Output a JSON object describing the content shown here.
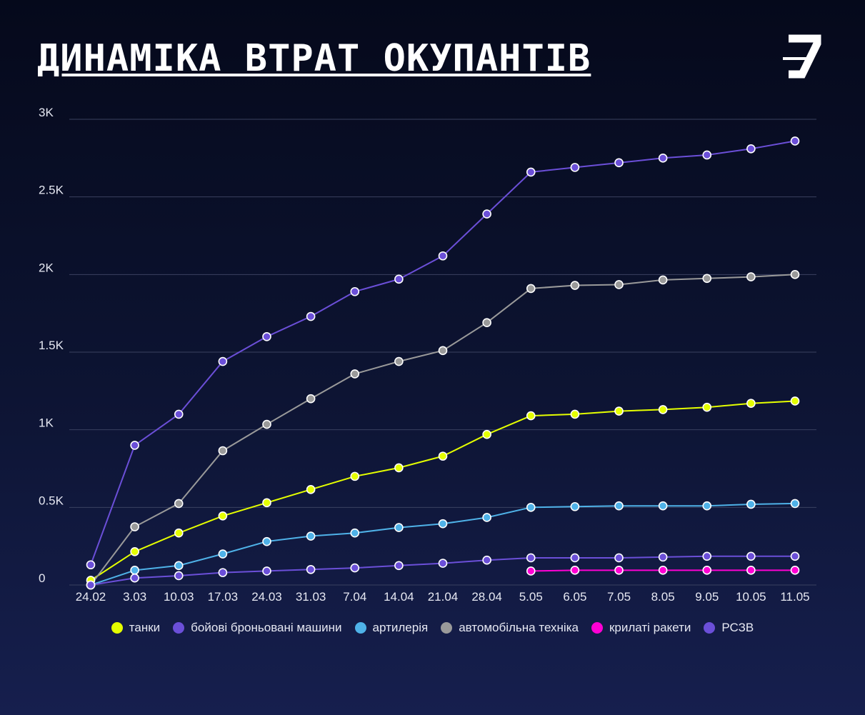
{
  "header": {
    "title": "ДИНАМІКА ВТРАТ ОКУПАНТІВ"
  },
  "logo": {
    "icon": "z-logo-icon"
  },
  "colors": {
    "background": "#0b1029",
    "grid": "#3a4160",
    "text": "#e6e8f2",
    "marker_stroke": "#ffffff"
  },
  "chart_data": {
    "type": "line",
    "title": "ДИНАМІКА ВТРАТ ОКУПАНТІВ",
    "xlabel": "",
    "ylabel": "",
    "categories": [
      "24.02",
      "3.03",
      "10.03",
      "17.03",
      "24.03",
      "31.03",
      "7.04",
      "14.04",
      "21.04",
      "28.04",
      "5.05",
      "6.05",
      "7.05",
      "8.05",
      "9.05",
      "10.05",
      "11.05"
    ],
    "ylim": [
      0,
      3000
    ],
    "yticks": [
      0,
      500,
      1000,
      1500,
      2000,
      2500,
      3000
    ],
    "ytick_labels": [
      "0",
      "0.5K",
      "1K",
      "1.5K",
      "2K",
      "2.5K",
      "3K"
    ],
    "grid": true,
    "legend_position": "bottom",
    "series": [
      {
        "name": "танки",
        "color": "#e5ff00",
        "values": [
          30,
          215,
          335,
          445,
          530,
          615,
          700,
          755,
          830,
          970,
          1090,
          1100,
          1120,
          1130,
          1145,
          1170,
          1185
        ]
      },
      {
        "name": "бойові броньовані машини",
        "color": "#6b4fd8",
        "values": [
          130,
          900,
          1100,
          1440,
          1600,
          1730,
          1890,
          1970,
          2120,
          2390,
          2660,
          2690,
          2720,
          2750,
          2770,
          2810,
          2860
        ]
      },
      {
        "name": "артилерія",
        "color": "#4fb2e8",
        "values": [
          0,
          95,
          125,
          200,
          280,
          315,
          335,
          370,
          395,
          435,
          500,
          505,
          510,
          510,
          510,
          520,
          525
        ]
      },
      {
        "name": "автомобільна техніка",
        "color": "#9a9a9a",
        "values": [
          0,
          375,
          525,
          865,
          1035,
          1200,
          1360,
          1440,
          1510,
          1690,
          1910,
          1930,
          1935,
          1965,
          1975,
          1985,
          2000
        ]
      },
      {
        "name": "крилаті ракети",
        "color": "#ff00d4",
        "values": [
          null,
          null,
          null,
          null,
          null,
          null,
          null,
          null,
          null,
          null,
          90,
          95,
          95,
          95,
          95,
          95,
          95
        ]
      },
      {
        "name": "РСЗВ",
        "color": "#6b4fd8",
        "values": [
          0,
          45,
          60,
          80,
          90,
          100,
          110,
          125,
          140,
          160,
          175,
          175,
          175,
          180,
          185,
          185,
          185
        ]
      }
    ]
  }
}
